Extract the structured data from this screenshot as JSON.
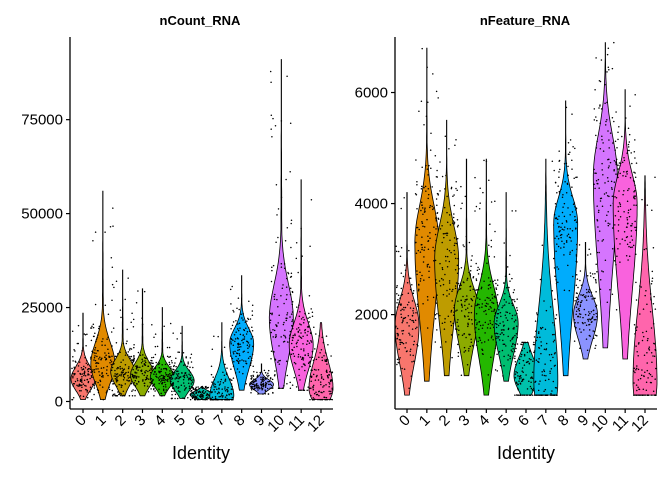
{
  "chart_data": [
    {
      "type": "violin",
      "title": "nCount_RNA",
      "xlabel": "Identity",
      "ylabel": "",
      "categories": [
        "0",
        "1",
        "2",
        "3",
        "4",
        "5",
        "6",
        "7",
        "8",
        "9",
        "10",
        "11",
        "12"
      ],
      "ylim": [
        -2000,
        97000
      ],
      "yticks": [
        0,
        25000,
        50000,
        75000
      ],
      "ytick_labels": [
        "0",
        "25000",
        "50000",
        "75000"
      ],
      "series": [
        {
          "min": 500,
          "q1": 4500,
          "median": 6500,
          "q3": 8500,
          "max": 23500,
          "peak": 6000
        },
        {
          "min": 500,
          "q1": 7500,
          "median": 11000,
          "q3": 14500,
          "max": 56000,
          "peak": 10000
        },
        {
          "min": 1500,
          "q1": 6000,
          "median": 8000,
          "q3": 10500,
          "max": 35000,
          "peak": 8000
        },
        {
          "min": 1500,
          "q1": 5500,
          "median": 7500,
          "q3": 9500,
          "max": 30000,
          "peak": 7000
        },
        {
          "min": 1500,
          "q1": 5000,
          "median": 6500,
          "q3": 8500,
          "max": 25000,
          "peak": 6500
        },
        {
          "min": 800,
          "q1": 4000,
          "median": 5500,
          "q3": 7500,
          "max": 20000,
          "peak": 5500
        },
        {
          "min": 500,
          "q1": 1000,
          "median": 1800,
          "q3": 2500,
          "max": 4000,
          "peak": 1800
        },
        {
          "min": 500,
          "q1": 1000,
          "median": 2000,
          "q3": 5000,
          "max": 21000,
          "peak": 1500
        },
        {
          "min": 3000,
          "q1": 12000,
          "median": 15500,
          "q3": 18500,
          "max": 33500,
          "peak": 15500
        },
        {
          "min": 2000,
          "q1": 3500,
          "median": 4500,
          "q3": 5500,
          "max": 10000,
          "peak": 4500
        },
        {
          "min": 3500,
          "q1": 15000,
          "median": 22000,
          "q3": 29000,
          "max": 91000,
          "peak": 22000
        },
        {
          "min": 3000,
          "q1": 11000,
          "median": 15000,
          "q3": 19500,
          "max": 59000,
          "peak": 15000
        },
        {
          "min": 500,
          "q1": 2500,
          "median": 4500,
          "q3": 9000,
          "max": 21000,
          "peak": 3500
        }
      ]
    },
    {
      "type": "violin",
      "title": "nFeature_RNA",
      "xlabel": "Identity",
      "ylabel": "",
      "categories": [
        "0",
        "1",
        "2",
        "3",
        "4",
        "5",
        "6",
        "7",
        "8",
        "9",
        "10",
        "11",
        "12"
      ],
      "ylim": [
        300,
        7000
      ],
      "yticks": [
        2000,
        4000,
        6000
      ],
      "ytick_labels": [
        "2000",
        "4000",
        "6000"
      ],
      "series": [
        {
          "min": 550,
          "q1": 1500,
          "median": 1800,
          "q3": 2150,
          "max": 4200,
          "peak": 1800
        },
        {
          "min": 800,
          "q1": 2600,
          "median": 3200,
          "q3": 3700,
          "max": 6800,
          "peak": 3300
        },
        {
          "min": 900,
          "q1": 2400,
          "median": 2900,
          "q3": 3400,
          "max": 5500,
          "peak": 3000
        },
        {
          "min": 900,
          "q1": 1800,
          "median": 2100,
          "q3": 2400,
          "max": 4800,
          "peak": 2100
        },
        {
          "min": 550,
          "q1": 1750,
          "median": 2050,
          "q3": 2400,
          "max": 4800,
          "peak": 2000
        },
        {
          "min": 800,
          "q1": 1600,
          "median": 1850,
          "q3": 2100,
          "max": 4200,
          "peak": 1850
        },
        {
          "min": 550,
          "q1": 700,
          "median": 900,
          "q3": 1150,
          "max": 1500,
          "peak": 900
        },
        {
          "min": 550,
          "q1": 700,
          "median": 1000,
          "q3": 1800,
          "max": 4800,
          "peak": 800
        },
        {
          "min": 900,
          "q1": 3300,
          "median": 3650,
          "q3": 4000,
          "max": 5850,
          "peak": 3650
        },
        {
          "min": 1200,
          "q1": 1850,
          "median": 2050,
          "q3": 2250,
          "max": 3300,
          "peak": 2000
        },
        {
          "min": 1400,
          "q1": 3800,
          "median": 4400,
          "q3": 5000,
          "max": 6900,
          "peak": 4500
        },
        {
          "min": 1200,
          "q1": 3600,
          "median": 4000,
          "q3": 4400,
          "max": 6050,
          "peak": 4000
        },
        {
          "min": 550,
          "q1": 700,
          "median": 1000,
          "q3": 1800,
          "max": 4500,
          "peak": 800
        }
      ]
    }
  ],
  "palette": [
    "#F8766D",
    "#E18A00",
    "#BE9C00",
    "#8CAB00",
    "#24B700",
    "#00BE70",
    "#00C1AB",
    "#00BBDA",
    "#00ACFC",
    "#8B93FF",
    "#D575FE",
    "#F962DD",
    "#FF65AC"
  ]
}
